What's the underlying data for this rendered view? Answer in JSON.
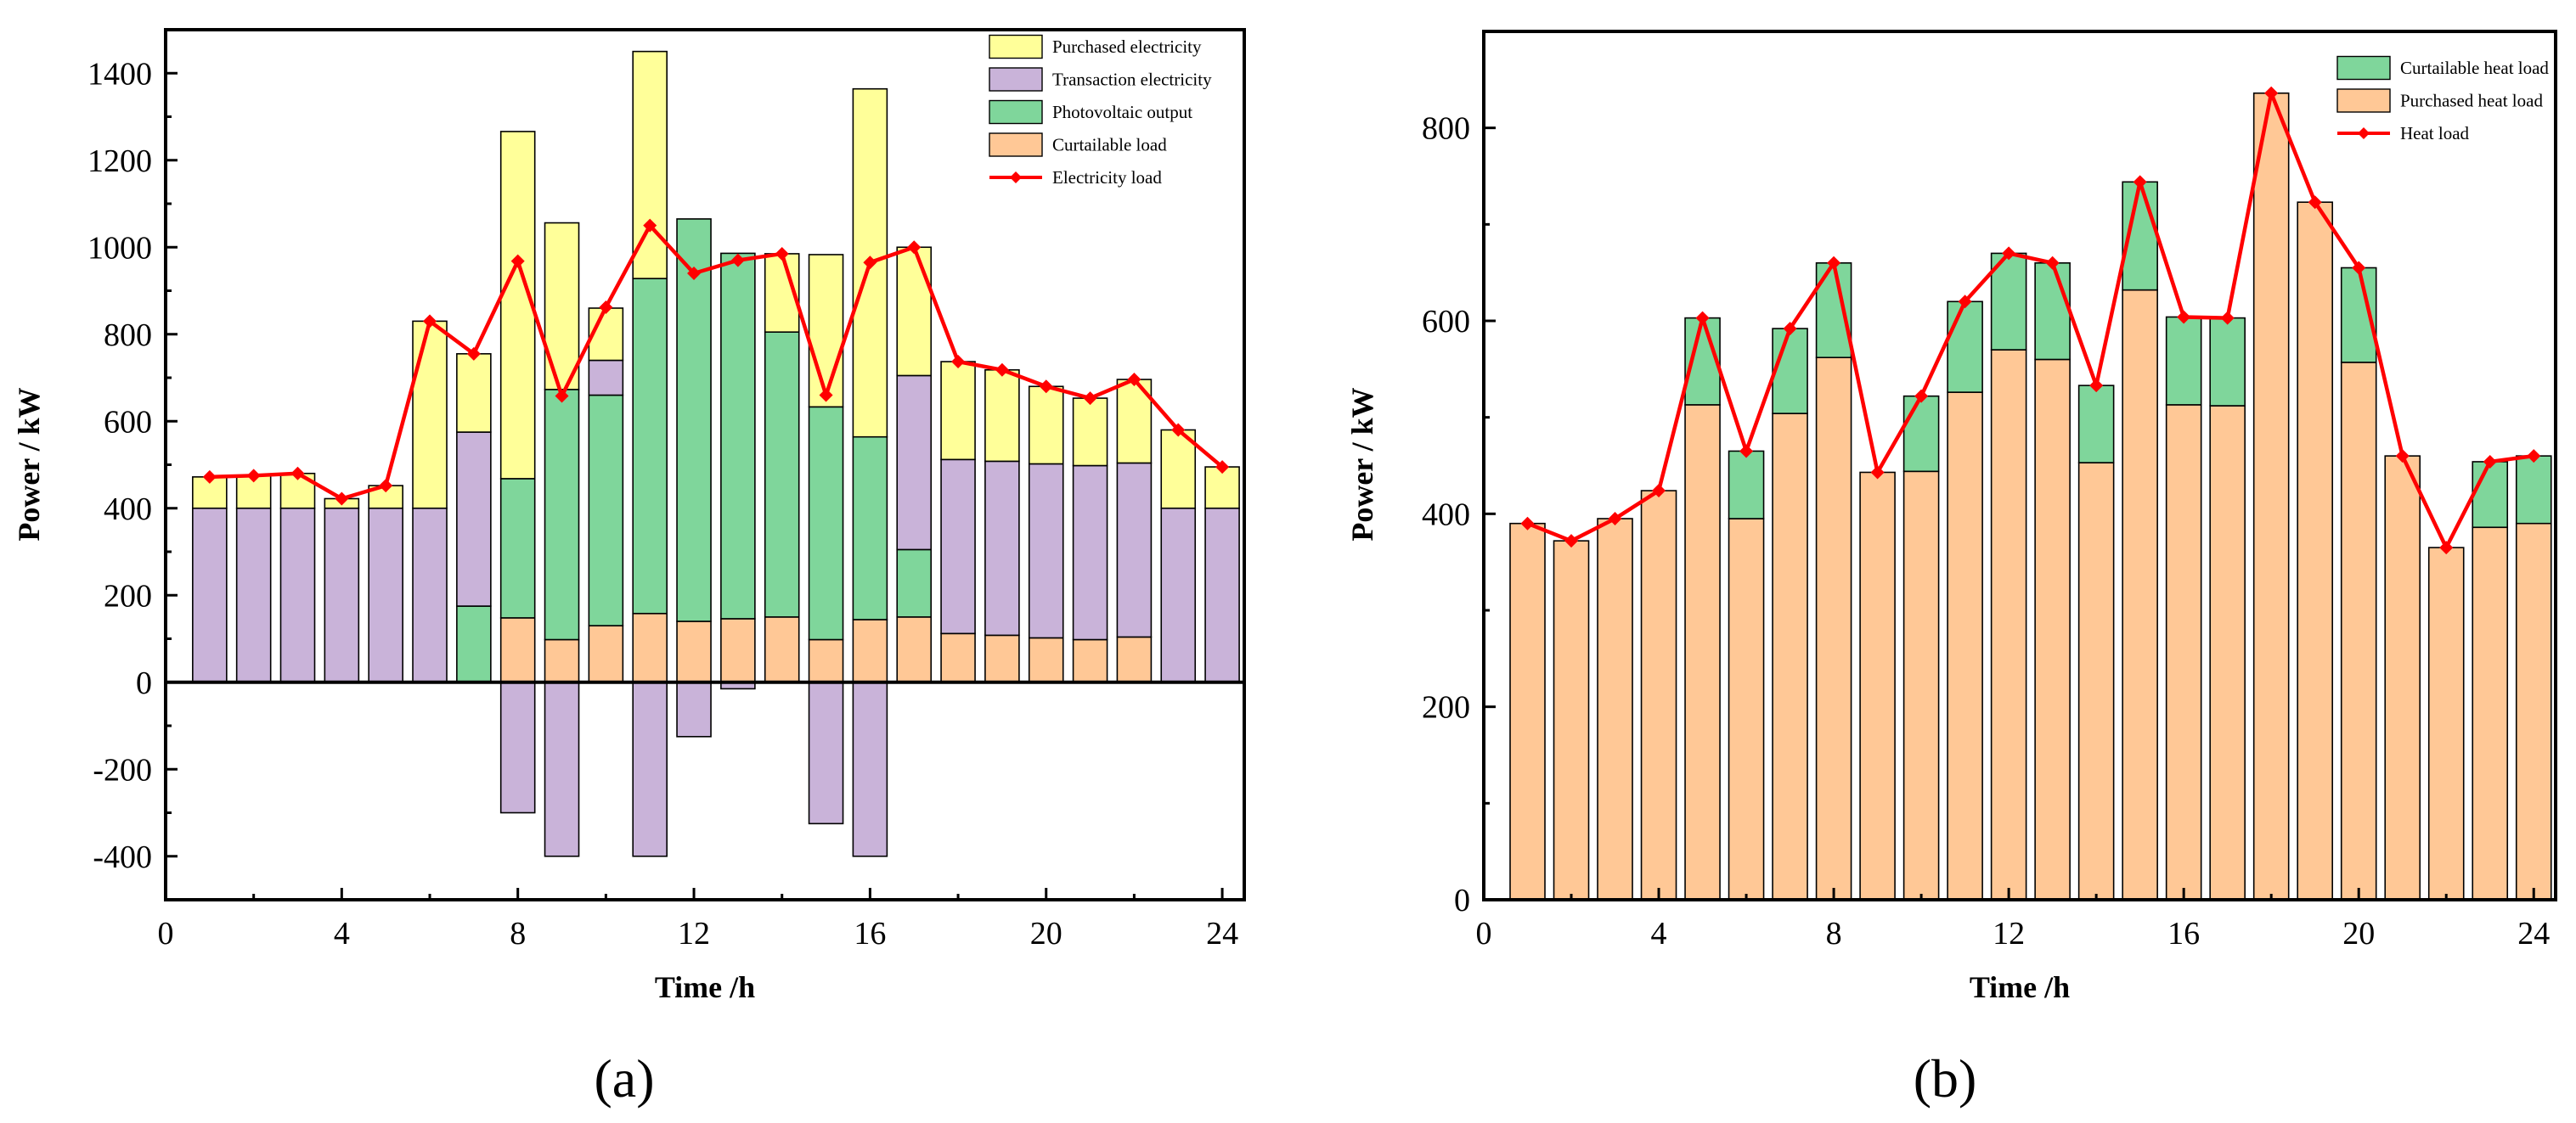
{
  "figure": {
    "panel_labels": [
      "(a)",
      "(b)"
    ]
  },
  "colors": {
    "purchased": "#ffff99",
    "transaction": "#c9b3d9",
    "pv": "#7fd69b",
    "curtailable": "#ffc896",
    "load_line": "#ff0000",
    "bar_stroke": "#000000"
  },
  "chart_data": [
    {
      "type": "bar",
      "stacked": true,
      "panel": "(a)",
      "title": "",
      "xlabel": "Time /h",
      "ylabel": "Power / kW",
      "xlim": [
        0,
        24.5
      ],
      "ylim": [
        -500,
        1500
      ],
      "xticks": [
        0,
        4,
        8,
        12,
        16,
        20,
        24
      ],
      "yticks": [
        -400,
        -200,
        0,
        200,
        400,
        600,
        800,
        1000,
        1200,
        1400
      ],
      "legend_position": "top-right",
      "x": [
        1,
        2,
        3,
        4,
        5,
        6,
        7,
        8,
        9,
        10,
        11,
        12,
        13,
        14,
        15,
        16,
        17,
        18,
        19,
        20,
        21,
        22,
        23,
        24
      ],
      "series": [
        {
          "name": "Curtailable load",
          "color_key": "curtailable",
          "values": [
            0,
            0,
            0,
            0,
            0,
            0,
            0,
            148,
            98,
            130,
            158,
            140,
            146,
            150,
            98,
            144,
            150,
            112,
            108,
            102,
            98,
            104,
            0,
            0
          ]
        },
        {
          "name": "Photovoltaic output",
          "color_key": "pv",
          "values": [
            0,
            0,
            0,
            0,
            0,
            0,
            175,
            320,
            575,
            530,
            770,
            925,
            840,
            655,
            535,
            420,
            155,
            0,
            0,
            0,
            0,
            0,
            0,
            0
          ]
        },
        {
          "name": "Transaction electricity",
          "color_key": "transaction",
          "values": [
            400,
            400,
            400,
            400,
            400,
            400,
            400,
            -300,
            -400,
            80,
            -400,
            -125,
            -15,
            0,
            -325,
            -400,
            400,
            400,
            400,
            400,
            400,
            400,
            400,
            400
          ]
        },
        {
          "name": "Purchased electricity",
          "color_key": "purchased",
          "values": [
            72,
            75,
            80,
            22,
            52,
            430,
            180,
            798,
            383,
            120,
            522,
            0,
            0,
            180,
            350,
            800,
            295,
            225,
            210,
            178,
            155,
            192,
            180,
            95
          ]
        }
      ],
      "line": {
        "name": "Electricity load",
        "color_key": "load_line",
        "values": [
          472,
          475,
          480,
          422,
          452,
          830,
          755,
          968,
          658,
          862,
          1050,
          940,
          970,
          985,
          660,
          965,
          1000,
          737,
          718,
          680,
          653,
          696,
          580,
          495
        ]
      },
      "legend": [
        "Purchased electricity",
        "Transaction electricity",
        "Photovoltaic output",
        "Curtailable load",
        "Electricity load"
      ]
    },
    {
      "type": "bar",
      "stacked": true,
      "panel": "(b)",
      "title": "",
      "xlabel": "Time /h",
      "ylabel": "Power / kW",
      "xlim": [
        0,
        24.5
      ],
      "ylim": [
        0,
        900
      ],
      "xticks": [
        0,
        4,
        8,
        12,
        16,
        20,
        24
      ],
      "yticks": [
        0,
        200,
        400,
        600,
        800
      ],
      "legend_position": "top-right",
      "x": [
        1,
        2,
        3,
        4,
        5,
        6,
        7,
        8,
        9,
        10,
        11,
        12,
        13,
        14,
        15,
        16,
        17,
        18,
        19,
        20,
        21,
        22,
        23,
        24
      ],
      "series": [
        {
          "name": "Purchased heat load",
          "color_key": "curtailable",
          "values": [
            390,
            372,
            395,
            424,
            513,
            395,
            504,
            562,
            443,
            444,
            526,
            570,
            560,
            453,
            632,
            513,
            512,
            836,
            723,
            557,
            460,
            365,
            386,
            390
          ]
        },
        {
          "name": "Curtailable heat load",
          "color_key": "pv",
          "values": [
            0,
            0,
            0,
            0,
            90,
            70,
            88,
            98,
            0,
            78,
            94,
            100,
            100,
            80,
            112,
            91,
            91,
            0,
            0,
            98,
            0,
            0,
            68,
            70
          ]
        }
      ],
      "line": {
        "name": "Heat load",
        "color_key": "load_line",
        "values": [
          390,
          372,
          395,
          424,
          603,
          465,
          592,
          660,
          443,
          522,
          620,
          670,
          660,
          533,
          744,
          604,
          603,
          836,
          723,
          655,
          460,
          365,
          454,
          460
        ]
      },
      "legend": [
        "Curtailable heat load",
        "Purchased heat load",
        "Heat load"
      ]
    }
  ]
}
